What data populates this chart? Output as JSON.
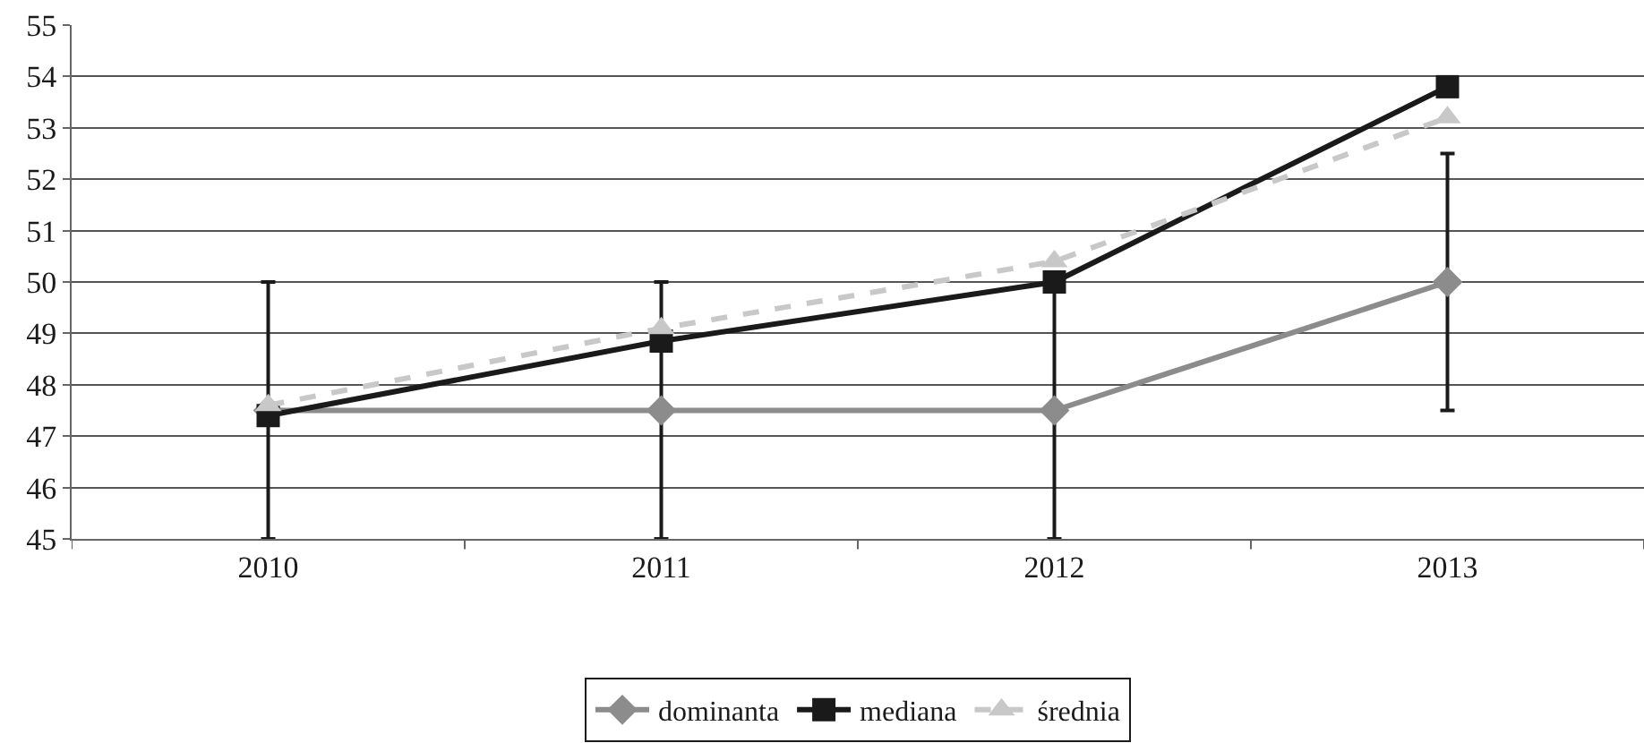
{
  "chart_data": {
    "type": "line",
    "categories": [
      "2010",
      "2011",
      "2012",
      "2013"
    ],
    "series": [
      {
        "name": "dominanta",
        "color": "#8c8c8c",
        "values": [
          47.5,
          47.5,
          47.5,
          50
        ],
        "errors": [
          2.5,
          2.5,
          2.5,
          2.5
        ],
        "marker": "diamond",
        "line_style": "solid"
      },
      {
        "name": "mediana",
        "color": "#1a1a1a",
        "values": [
          47.4,
          48.85,
          50,
          53.8
        ],
        "marker": "square",
        "line_style": "solid"
      },
      {
        "name": "średnia",
        "color": "#c8c8c8",
        "values": [
          47.6,
          49.1,
          50.4,
          53.2
        ],
        "marker": "triangle",
        "line_style": "dashed"
      }
    ],
    "ylim": [
      45,
      55
    ],
    "yticks": [
      45,
      46,
      47,
      48,
      49,
      50,
      51,
      52,
      53,
      54,
      55
    ],
    "grid": "y",
    "legend": "bottom"
  }
}
